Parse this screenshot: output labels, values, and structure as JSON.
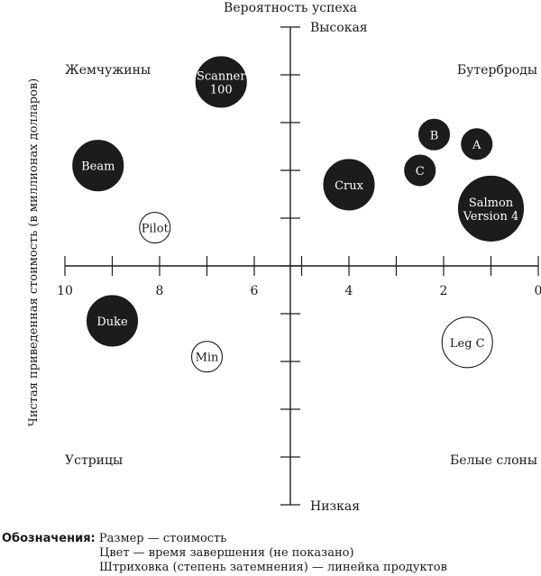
{
  "chart_data": {
    "type": "scatter",
    "title": "",
    "top_axis_title": "Вероятность успеха",
    "y_axis_high": "Высокая",
    "y_axis_low": "Низкая",
    "ylabel": "Чистая приведенная стоимость (в миллионах долларов)",
    "x_ticks": [
      "10",
      "8",
      "6",
      "4",
      "2",
      "0"
    ],
    "xlim": [
      10,
      0
    ],
    "quadrants": {
      "top_left": "Жемчужины",
      "top_right": "Бутерброды",
      "bottom_left": "Устрицы",
      "bottom_right": "Белые слоны"
    },
    "points": [
      {
        "name": "Scanner 100",
        "lines": [
          "Scanner",
          "100"
        ],
        "npv": 6.7,
        "probability": 0.77,
        "size": "medium",
        "filled": true
      },
      {
        "name": "Beam",
        "lines": [
          "Beam"
        ],
        "npv": 9.3,
        "probability": 0.42,
        "size": "medium",
        "filled": true
      },
      {
        "name": "Pilot",
        "lines": [
          "Pilot"
        ],
        "npv": 8.1,
        "probability": 0.16,
        "size": "small",
        "filled": false
      },
      {
        "name": "Crux",
        "lines": [
          "Crux"
        ],
        "npv": 4.0,
        "probability": 0.34,
        "size": "medium",
        "filled": true
      },
      {
        "name": "B",
        "lines": [
          "B"
        ],
        "npv": 2.2,
        "probability": 0.55,
        "size": "small",
        "filled": true
      },
      {
        "name": "A",
        "lines": [
          "A"
        ],
        "npv": 1.3,
        "probability": 0.51,
        "size": "small",
        "filled": true
      },
      {
        "name": "C",
        "lines": [
          "C"
        ],
        "npv": 2.5,
        "probability": 0.4,
        "size": "small",
        "filled": true
      },
      {
        "name": "Salmon Version 4",
        "lines": [
          "Salmon",
          "Version 4"
        ],
        "npv": 1.0,
        "probability": 0.24,
        "size": "large",
        "filled": true
      },
      {
        "name": "Duke",
        "lines": [
          "Duke"
        ],
        "npv": 9.0,
        "probability": -0.23,
        "size": "medium",
        "filled": true
      },
      {
        "name": "Min",
        "lines": [
          "Min"
        ],
        "npv": 7.0,
        "probability": -0.38,
        "size": "small",
        "filled": false
      },
      {
        "name": "Leg C",
        "lines": [
          "Leg C"
        ],
        "npv": 1.5,
        "probability": -0.32,
        "size": "medium",
        "filled": false
      }
    ]
  },
  "legend": {
    "title": "Обозначения:",
    "size": "Размер — стоимость",
    "color": "Цвет — время завершения (не показано)",
    "shading": "Штриховка (степень затемнения) — линейка продуктов"
  },
  "colors": {
    "filled": "#1c1c1c",
    "outline": "#1c1c1c",
    "background": "#ffffff"
  }
}
